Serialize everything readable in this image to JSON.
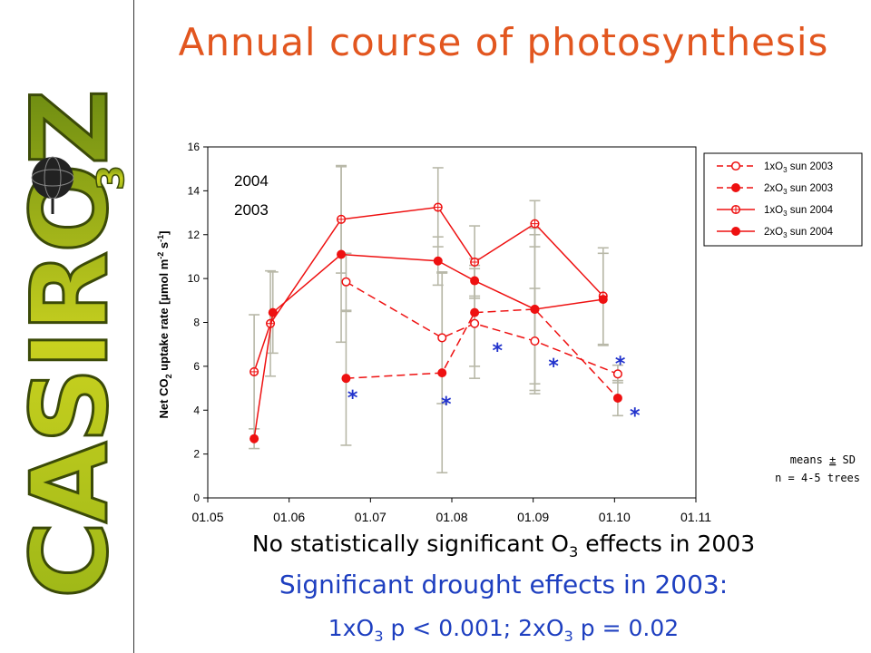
{
  "page": {
    "title": "Annual course of photosynthesis",
    "logo_text": "CASIROZ",
    "logo_sub": "3",
    "line1_a": "No statistically significant O",
    "line1_sub": "3",
    "line1_b": " effects in 2003",
    "line2": "Significant drought effects in 2003:",
    "line3_a": "1xO",
    "line3_sub1": "3",
    "line3_b": " p < 0.001; 2xO",
    "line3_sub2": "3",
    "line3_c": " p = 0.02"
  },
  "chart_data": {
    "type": "line",
    "ylabel_main": "Net CO",
    "ylabel_sub": "2",
    "ylabel_rest": " uptake rate [µmol m",
    "ylabel_sup1": "-2",
    "ylabel_mid": " s",
    "ylabel_sup2": "-1",
    "ylabel_end": "]",
    "xlim": [
      0,
      6
    ],
    "ylim": [
      0,
      16
    ],
    "x_tick_labels": [
      "01.05",
      "01.06",
      "01.07",
      "01.08",
      "01.09",
      "01.10",
      "01.11"
    ],
    "y_ticks": [
      0,
      2,
      4,
      6,
      8,
      10,
      12,
      14,
      16
    ],
    "year_labels": [
      "2004",
      "2003"
    ],
    "note_a": "means ",
    "note_pm": "±",
    "note_b": " SD",
    "note2": "n = 4-5 trees",
    "colors": {
      "line": "#ee1111",
      "errorbar": "#b8b8a8",
      "star": "#2233cc"
    },
    "series": [
      {
        "name": "1xO3 sun 2003",
        "legend_a": "1xO",
        "legend_sub": "3",
        "legend_b": " sun 2003",
        "dashed": true,
        "marker": "circle-open",
        "points": [
          [
            1.7,
            9.85,
            1.3
          ],
          [
            2.88,
            7.3,
            3.0
          ],
          [
            3.28,
            7.95,
            2.5
          ],
          [
            4.02,
            7.15,
            2.4
          ],
          [
            5.04,
            5.65,
            0.4
          ]
        ]
      },
      {
        "name": "2xO3 sun 2003",
        "legend_a": "2xO",
        "legend_sub": "3",
        "legend_b": " sun 2003",
        "dashed": true,
        "marker": "circle-filled",
        "points": [
          [
            1.7,
            5.45,
            3.05
          ],
          [
            2.88,
            5.7,
            4.55
          ],
          [
            3.28,
            8.45,
            2.45
          ],
          [
            4.02,
            8.6,
            3.4
          ],
          [
            5.04,
            4.55,
            0.8
          ]
        ]
      },
      {
        "name": "1xO3 sun 2004",
        "legend_a": "1xO",
        "legend_sub": "3",
        "legend_b": " sun 2004",
        "dashed": false,
        "marker": "circle-cross",
        "points": [
          [
            0.57,
            5.75,
            2.6
          ],
          [
            0.77,
            7.95,
            2.4
          ],
          [
            1.64,
            12.7,
            2.45
          ],
          [
            2.83,
            13.25,
            1.8
          ],
          [
            3.28,
            10.75,
            1.65
          ],
          [
            4.02,
            12.5,
            1.05
          ],
          [
            4.86,
            9.2,
            2.2
          ]
        ]
      },
      {
        "name": "2xO3 sun 2004",
        "legend_a": "2xO",
        "legend_sub": "3",
        "legend_b": " sun 2004",
        "dashed": false,
        "marker": "circle-filled",
        "points": [
          [
            0.57,
            2.7,
            0.45
          ],
          [
            0.8,
            8.45,
            1.85
          ],
          [
            1.64,
            11.1,
            4.0
          ],
          [
            2.83,
            10.8,
            1.1
          ],
          [
            3.28,
            9.9,
            0.7
          ],
          [
            4.02,
            8.6,
            3.7
          ],
          [
            4.86,
            9.05,
            2.1
          ]
        ]
      }
    ],
    "stars": [
      [
        1.78,
        4.8
      ],
      [
        2.93,
        4.5
      ],
      [
        3.56,
        6.95
      ],
      [
        4.25,
        6.25
      ],
      [
        5.07,
        6.35
      ],
      [
        5.25,
        4.0
      ]
    ],
    "star_text": "*"
  }
}
